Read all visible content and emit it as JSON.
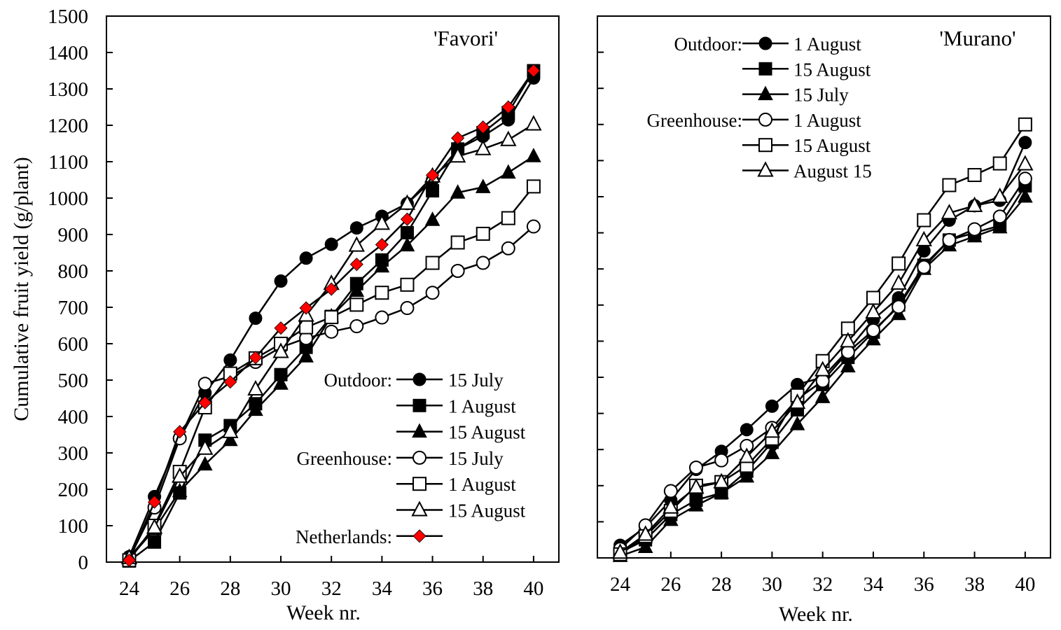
{
  "chart_data": [
    {
      "type": "line",
      "title": "'Favori'",
      "xlabel": "Week nr.",
      "ylabel": "Cumulative fruit yield (g/plant)",
      "xlim": [
        23.1,
        41
      ],
      "ylim": [
        0,
        1500
      ],
      "x_ticks": [
        24,
        26,
        28,
        30,
        32,
        34,
        36,
        38,
        40
      ],
      "y_ticks": [
        0,
        100,
        200,
        300,
        400,
        500,
        600,
        700,
        800,
        900,
        1000,
        1100,
        1200,
        1300,
        1400,
        1500
      ],
      "show_y_tick_labels": true,
      "legend_position": "bottom-right",
      "x": [
        24,
        25,
        26,
        27,
        28,
        29,
        30,
        31,
        32,
        33,
        34,
        35,
        36,
        37,
        38,
        39,
        40
      ],
      "legend_groups": [
        {
          "label": "Outdoor:",
          "series": [
            0,
            1,
            2
          ]
        },
        {
          "label": "Greenhouse:",
          "series": [
            3,
            4,
            5
          ]
        },
        {
          "label": "Netherlands:",
          "series": [
            6
          ]
        }
      ],
      "series": [
        {
          "name": "15 July",
          "marker": "circle",
          "filled": true,
          "color": "#000000",
          "values": [
            15,
            180,
            340,
            465,
            555,
            670,
            772,
            835,
            873,
            918,
            950,
            985,
            1050,
            1135,
            1170,
            1215,
            1330
          ]
        },
        {
          "name": "1 August",
          "marker": "square",
          "filled": true,
          "color": "#000000",
          "values": [
            3,
            55,
            190,
            335,
            375,
            435,
            515,
            590,
            675,
            765,
            830,
            905,
            1020,
            1135,
            1180,
            1235,
            1350
          ]
        },
        {
          "name": "15 August",
          "marker": "triangle",
          "filled": true,
          "color": "#000000",
          "values": [
            10,
            90,
            195,
            268,
            335,
            418,
            490,
            565,
            675,
            745,
            812,
            870,
            940,
            1015,
            1030,
            1070,
            1115
          ]
        },
        {
          "name": "15 July",
          "marker": "circle",
          "filled": false,
          "color": "#000000",
          "values": [
            10,
            150,
            340,
            490,
            510,
            550,
            590,
            615,
            633,
            648,
            672,
            698,
            740,
            800,
            822,
            862,
            922
          ]
        },
        {
          "name": "1 August",
          "marker": "square",
          "filled": false,
          "color": "#000000",
          "values": [
            5,
            100,
            248,
            425,
            518,
            560,
            600,
            645,
            673,
            707,
            740,
            762,
            822,
            878,
            902,
            945,
            1032
          ]
        },
        {
          "name": "15 August",
          "marker": "triangle",
          "filled": false,
          "color": "#000000",
          "values": [
            12,
            95,
            235,
            312,
            358,
            475,
            578,
            678,
            765,
            870,
            930,
            985,
            1060,
            1115,
            1135,
            1160,
            1203
          ]
        },
        {
          "name": "",
          "marker": "diamond",
          "filled": true,
          "color": "#ff0000",
          "values": [
            5,
            165,
            358,
            438,
            495,
            562,
            643,
            698,
            750,
            818,
            872,
            942,
            1063,
            1165,
            1195,
            1250,
            1350
          ]
        }
      ]
    },
    {
      "type": "line",
      "title": "'Murano'",
      "xlabel": "Week nr.",
      "ylabel": "",
      "xlim": [
        23.1,
        41
      ],
      "ylim": [
        0,
        1500
      ],
      "x_ticks": [
        24,
        26,
        28,
        30,
        32,
        34,
        36,
        38,
        40
      ],
      "y_ticks": [
        0,
        100,
        200,
        300,
        400,
        500,
        600,
        700,
        800,
        900,
        1000,
        1100,
        1200,
        1300,
        1400,
        1500
      ],
      "show_y_tick_labels": false,
      "legend_position": "top-left",
      "x": [
        24,
        25,
        26,
        27,
        28,
        29,
        30,
        31,
        32,
        33,
        34,
        35,
        36,
        37,
        38,
        39,
        40
      ],
      "legend_groups": [
        {
          "label": "Outdoor:",
          "series": [
            0,
            1,
            2
          ]
        },
        {
          "label": "Greenhouse:",
          "series": [
            3,
            4,
            5
          ]
        }
      ],
      "series": [
        {
          "name": "1 August",
          "marker": "circle",
          "filled": true,
          "color": "#000000",
          "values": [
            35,
            85,
            160,
            245,
            295,
            355,
            420,
            480,
            500,
            575,
            660,
            720,
            850,
            935,
            975,
            990,
            1150
          ]
        },
        {
          "name": "15 August",
          "marker": "square",
          "filled": true,
          "color": "#000000",
          "values": [
            15,
            50,
            120,
            160,
            180,
            240,
            320,
            410,
            480,
            555,
            625,
            700,
            810,
            880,
            900,
            920,
            1030
          ]
        },
        {
          "name": "15 July",
          "marker": "triangle",
          "filled": true,
          "color": "#000000",
          "values": [
            5,
            30,
            105,
            145,
            180,
            225,
            290,
            370,
            445,
            530,
            605,
            675,
            800,
            865,
            890,
            915,
            1000
          ]
        },
        {
          "name": "1 August",
          "marker": "circle",
          "filled": false,
          "color": "#000000",
          "values": [
            25,
            90,
            185,
            250,
            270,
            310,
            360,
            440,
            490,
            570,
            630,
            695,
            805,
            880,
            910,
            945,
            1050
          ]
        },
        {
          "name": "15 August",
          "marker": "square",
          "filled": false,
          "color": "#000000",
          "values": [
            10,
            60,
            130,
            200,
            210,
            255,
            330,
            450,
            545,
            635,
            720,
            815,
            935,
            1032,
            1060,
            1092,
            1200
          ]
        },
        {
          "name": "August 15",
          "marker": "triangle",
          "filled": false,
          "color": "#000000",
          "values": [
            15,
            65,
            140,
            195,
            210,
            280,
            350,
            430,
            520,
            600,
            680,
            760,
            880,
            955,
            975,
            1000,
            1090
          ]
        }
      ]
    }
  ]
}
